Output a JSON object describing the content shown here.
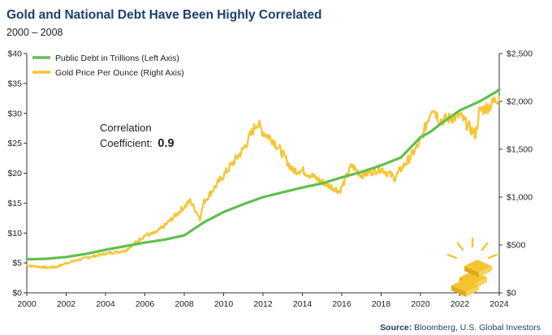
{
  "header": {
    "title": "Gold and National Debt Have Been Highly Correlated",
    "subtitle": "2000 – 2008"
  },
  "footer": {
    "source_label": "Source:",
    "source_text": "Bloomberg, U.S. Global Investors"
  },
  "annotation": {
    "line1": "Correlation",
    "line2_prefix": "Coefficient:",
    "line2_value": "0.9"
  },
  "colors": {
    "debt": "#62bf4e",
    "gold": "#f5c531",
    "axis": "#333333",
    "title": "#1c3f6e"
  },
  "icon": {
    "name": "gold-bars-icon"
  },
  "chart_data": {
    "type": "line",
    "title": "Gold and National Debt Have Been Highly Correlated",
    "subtitle": "2000 – 2008",
    "xlim": [
      2000,
      2024
    ],
    "x_ticks": [
      2000,
      2002,
      2004,
      2006,
      2008,
      2010,
      2012,
      2014,
      2016,
      2018,
      2020,
      2022,
      2024
    ],
    "left_axis": {
      "ylim": [
        0,
        40
      ],
      "ticks": [
        0,
        5,
        10,
        15,
        20,
        25,
        30,
        35,
        40
      ],
      "tick_labels": [
        "$0",
        "$5",
        "$10",
        "$15",
        "$20",
        "$25",
        "$30",
        "$35",
        "$40"
      ]
    },
    "right_axis": {
      "ylim": [
        0,
        2500
      ],
      "ticks": [
        0,
        500,
        1000,
        1500,
        2000,
        2500
      ],
      "tick_labels": [
        "$0",
        "$500",
        "$1,000",
        "$1,500",
        "$2,000",
        "$2,500"
      ]
    },
    "legend": {
      "placement": "top-left"
    },
    "series": [
      {
        "name": "Public Debt in Trillions (Left Axis)",
        "axis": "left",
        "color": "#62bf4e",
        "x": [
          2000,
          2001,
          2002,
          2003,
          2004,
          2005,
          2006,
          2007,
          2008,
          2009,
          2010,
          2011,
          2012,
          2013,
          2014,
          2015,
          2016,
          2017,
          2018,
          2019,
          2020,
          2020.5,
          2021,
          2022,
          2023,
          2023.8,
          2024
        ],
        "values": [
          5.6,
          5.7,
          6.0,
          6.5,
          7.2,
          7.8,
          8.4,
          8.9,
          9.6,
          11.8,
          13.5,
          14.8,
          16.0,
          16.8,
          17.6,
          18.3,
          19.3,
          20.2,
          21.3,
          22.6,
          26.0,
          26.9,
          28.2,
          30.5,
          32.0,
          33.5,
          34.0
        ]
      },
      {
        "name": "Gold Price Per Ounce (Right Axis)",
        "axis": "right",
        "color": "#f5c531",
        "x": [
          2000,
          2001,
          2001.5,
          2002,
          2003,
          2004,
          2005,
          2006,
          2006.5,
          2007,
          2008,
          2008.3,
          2008.8,
          2009,
          2010,
          2011,
          2011.7,
          2012,
          2012.5,
          2013,
          2013.5,
          2014,
          2015,
          2015.9,
          2016.5,
          2017,
          2018,
          2018.7,
          2019,
          2019.5,
          2020,
          2020.6,
          2021,
          2022,
          2022.8,
          2023,
          2023.5,
          2024
        ],
        "values": [
          285,
          265,
          270,
          310,
          365,
          410,
          440,
          600,
          620,
          700,
          900,
          960,
          780,
          950,
          1230,
          1500,
          1780,
          1680,
          1600,
          1450,
          1280,
          1280,
          1160,
          1060,
          1330,
          1230,
          1300,
          1200,
          1290,
          1420,
          1580,
          1950,
          1800,
          1850,
          1650,
          1900,
          1950,
          2050
        ]
      }
    ],
    "annotation": "Correlation Coefficient: 0.9"
  }
}
